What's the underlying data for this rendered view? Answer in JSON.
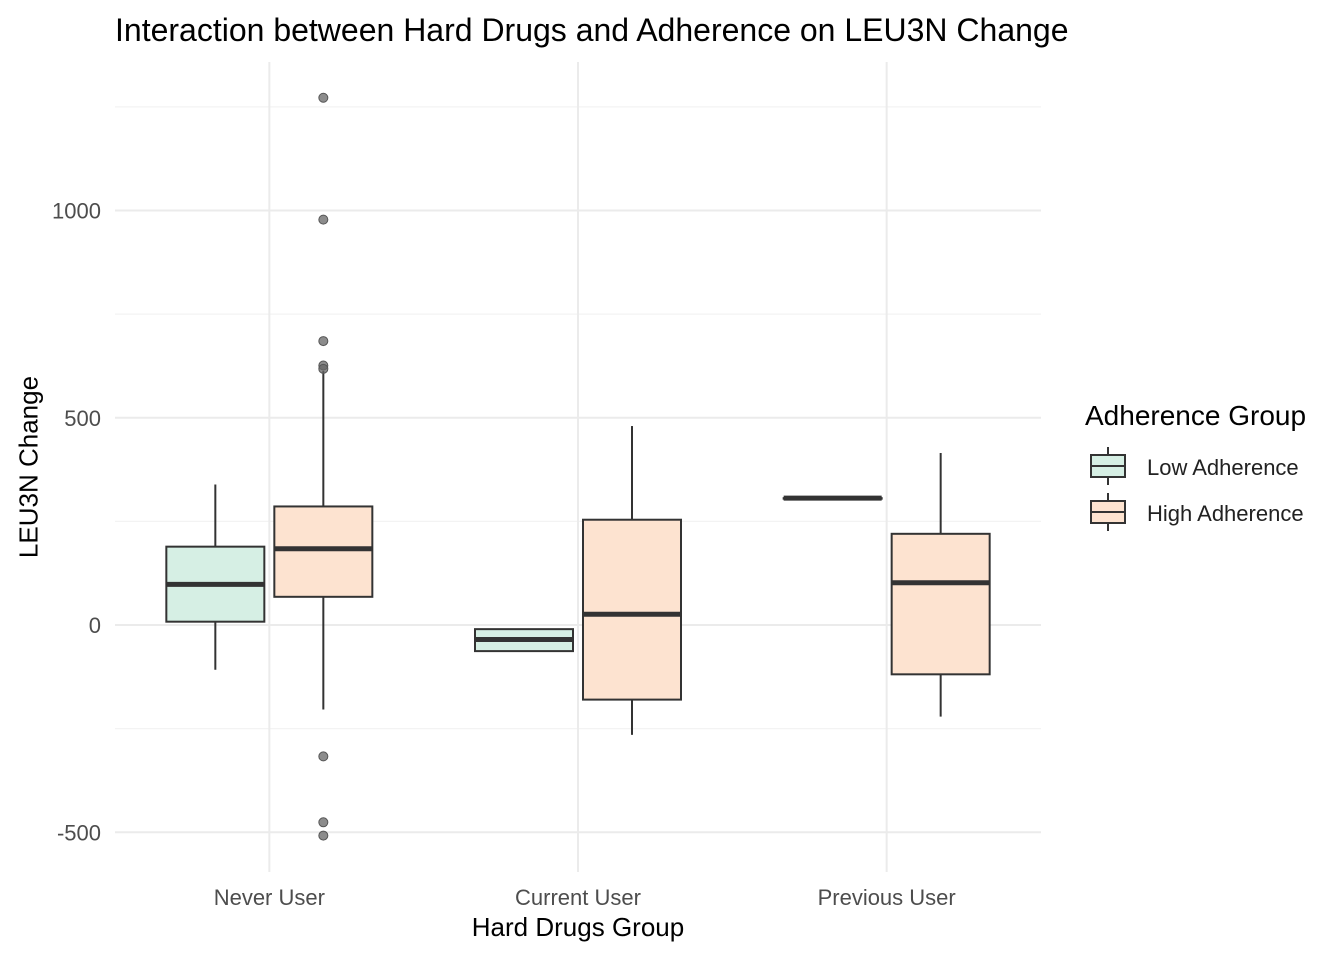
{
  "chart_data": {
    "type": "boxplot",
    "title": "Interaction between Hard Drugs and Adherence on LEU3N Change",
    "xlabel": "Hard Drugs Group",
    "ylabel": "LEU3N Change",
    "categories": [
      "Never User",
      "Current User",
      "Previous User"
    ],
    "ylim": [
      -590,
      1320
    ],
    "yticks": [
      -500,
      0,
      500,
      1000
    ],
    "ytick_labels": [
      "-500",
      "0",
      "500",
      "1000"
    ],
    "grid": true,
    "legend": {
      "title": "Adherence Group",
      "placement": "right",
      "entries": [
        "Low Adherence",
        "High Adherence"
      ]
    },
    "series": [
      {
        "name": "Low Adherence",
        "color": "#d6efe4",
        "boxes": [
          {
            "whisker_low": -108,
            "q1": 8,
            "median": 98,
            "q3": 189,
            "whisker_high": 339,
            "outliers": []
          },
          {
            "whisker_low": -63,
            "q1": -63,
            "median": -35,
            "q3": -10,
            "whisker_high": -10,
            "outliers": []
          },
          {
            "whisker_low": 306,
            "q1": 306,
            "median": 306,
            "q3": 306,
            "whisker_high": 306,
            "outliers": []
          }
        ]
      },
      {
        "name": "High Adherence",
        "color": "#fde3d0",
        "boxes": [
          {
            "whisker_low": -204,
            "q1": 68,
            "median": 184,
            "q3": 286,
            "whisker_high": 613,
            "outliers": [
              1272,
              978,
              685,
              626,
              618,
              -317,
              -476,
              -508
            ]
          },
          {
            "whisker_low": -265,
            "q1": -180,
            "median": 26,
            "q3": 254,
            "whisker_high": 480,
            "outliers": []
          },
          {
            "whisker_low": -221,
            "q1": -119,
            "median": 102,
            "q3": 220,
            "whisker_high": 415,
            "outliers": []
          }
        ]
      }
    ]
  }
}
